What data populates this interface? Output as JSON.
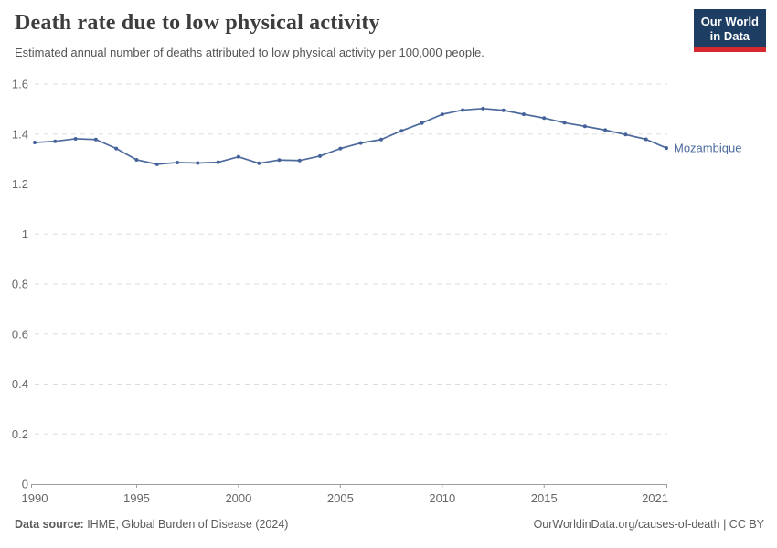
{
  "header": {
    "title": "Death rate due to low physical activity",
    "subtitle": "Estimated annual number of deaths attributed to low physical activity per 100,000 people.",
    "logo": {
      "line1": "Our World",
      "line2": "in Data"
    }
  },
  "footer": {
    "source_label": "Data source:",
    "source_text": " IHME, Global Burden of Disease (2024)",
    "credit": "OurWorldinData.org/causes-of-death | CC BY"
  },
  "colors": {
    "line": "#4c6a9c",
    "marker": "#44619a",
    "grid": "#dddddd",
    "axis": "#9e9e9e",
    "tick_label": "#666666",
    "entity_label": "#4c6a9c",
    "title": "#3d3d3d",
    "subtitle": "#555555",
    "footer": "#5b5b5b",
    "logo_bg": "#1d3d63",
    "logo_accent": "#d7282f"
  },
  "chart_data": {
    "type": "line",
    "title": "Death rate due to low physical activity",
    "xlabel": "",
    "ylabel": "",
    "x": [
      1990,
      1991,
      1992,
      1993,
      1994,
      1995,
      1996,
      1997,
      1998,
      1999,
      2000,
      2001,
      2002,
      2003,
      2004,
      2005,
      2006,
      2007,
      2008,
      2009,
      2010,
      2011,
      2012,
      2013,
      2014,
      2015,
      2016,
      2017,
      2018,
      2019,
      2020,
      2021
    ],
    "series": [
      {
        "name": "Mozambique",
        "values": [
          1.366,
          1.371,
          1.381,
          1.378,
          1.342,
          1.297,
          1.279,
          1.286,
          1.284,
          1.287,
          1.309,
          1.283,
          1.296,
          1.294,
          1.312,
          1.342,
          1.364,
          1.378,
          1.413,
          1.444,
          1.479,
          1.496,
          1.502,
          1.495,
          1.479,
          1.464,
          1.445,
          1.431,
          1.416,
          1.398,
          1.379,
          1.344
        ]
      }
    ],
    "xlim": [
      1990,
      2021
    ],
    "ylim": [
      0,
      1.6
    ],
    "x_ticks": [
      1990,
      1995,
      2000,
      2005,
      2010,
      2015,
      2021
    ],
    "y_ticks": [
      0,
      0.2,
      0.4,
      0.6,
      0.8,
      1,
      1.2,
      1.4,
      1.6
    ],
    "grid": "horizontal-dashed",
    "legend": "line-end-label",
    "markers": true
  }
}
